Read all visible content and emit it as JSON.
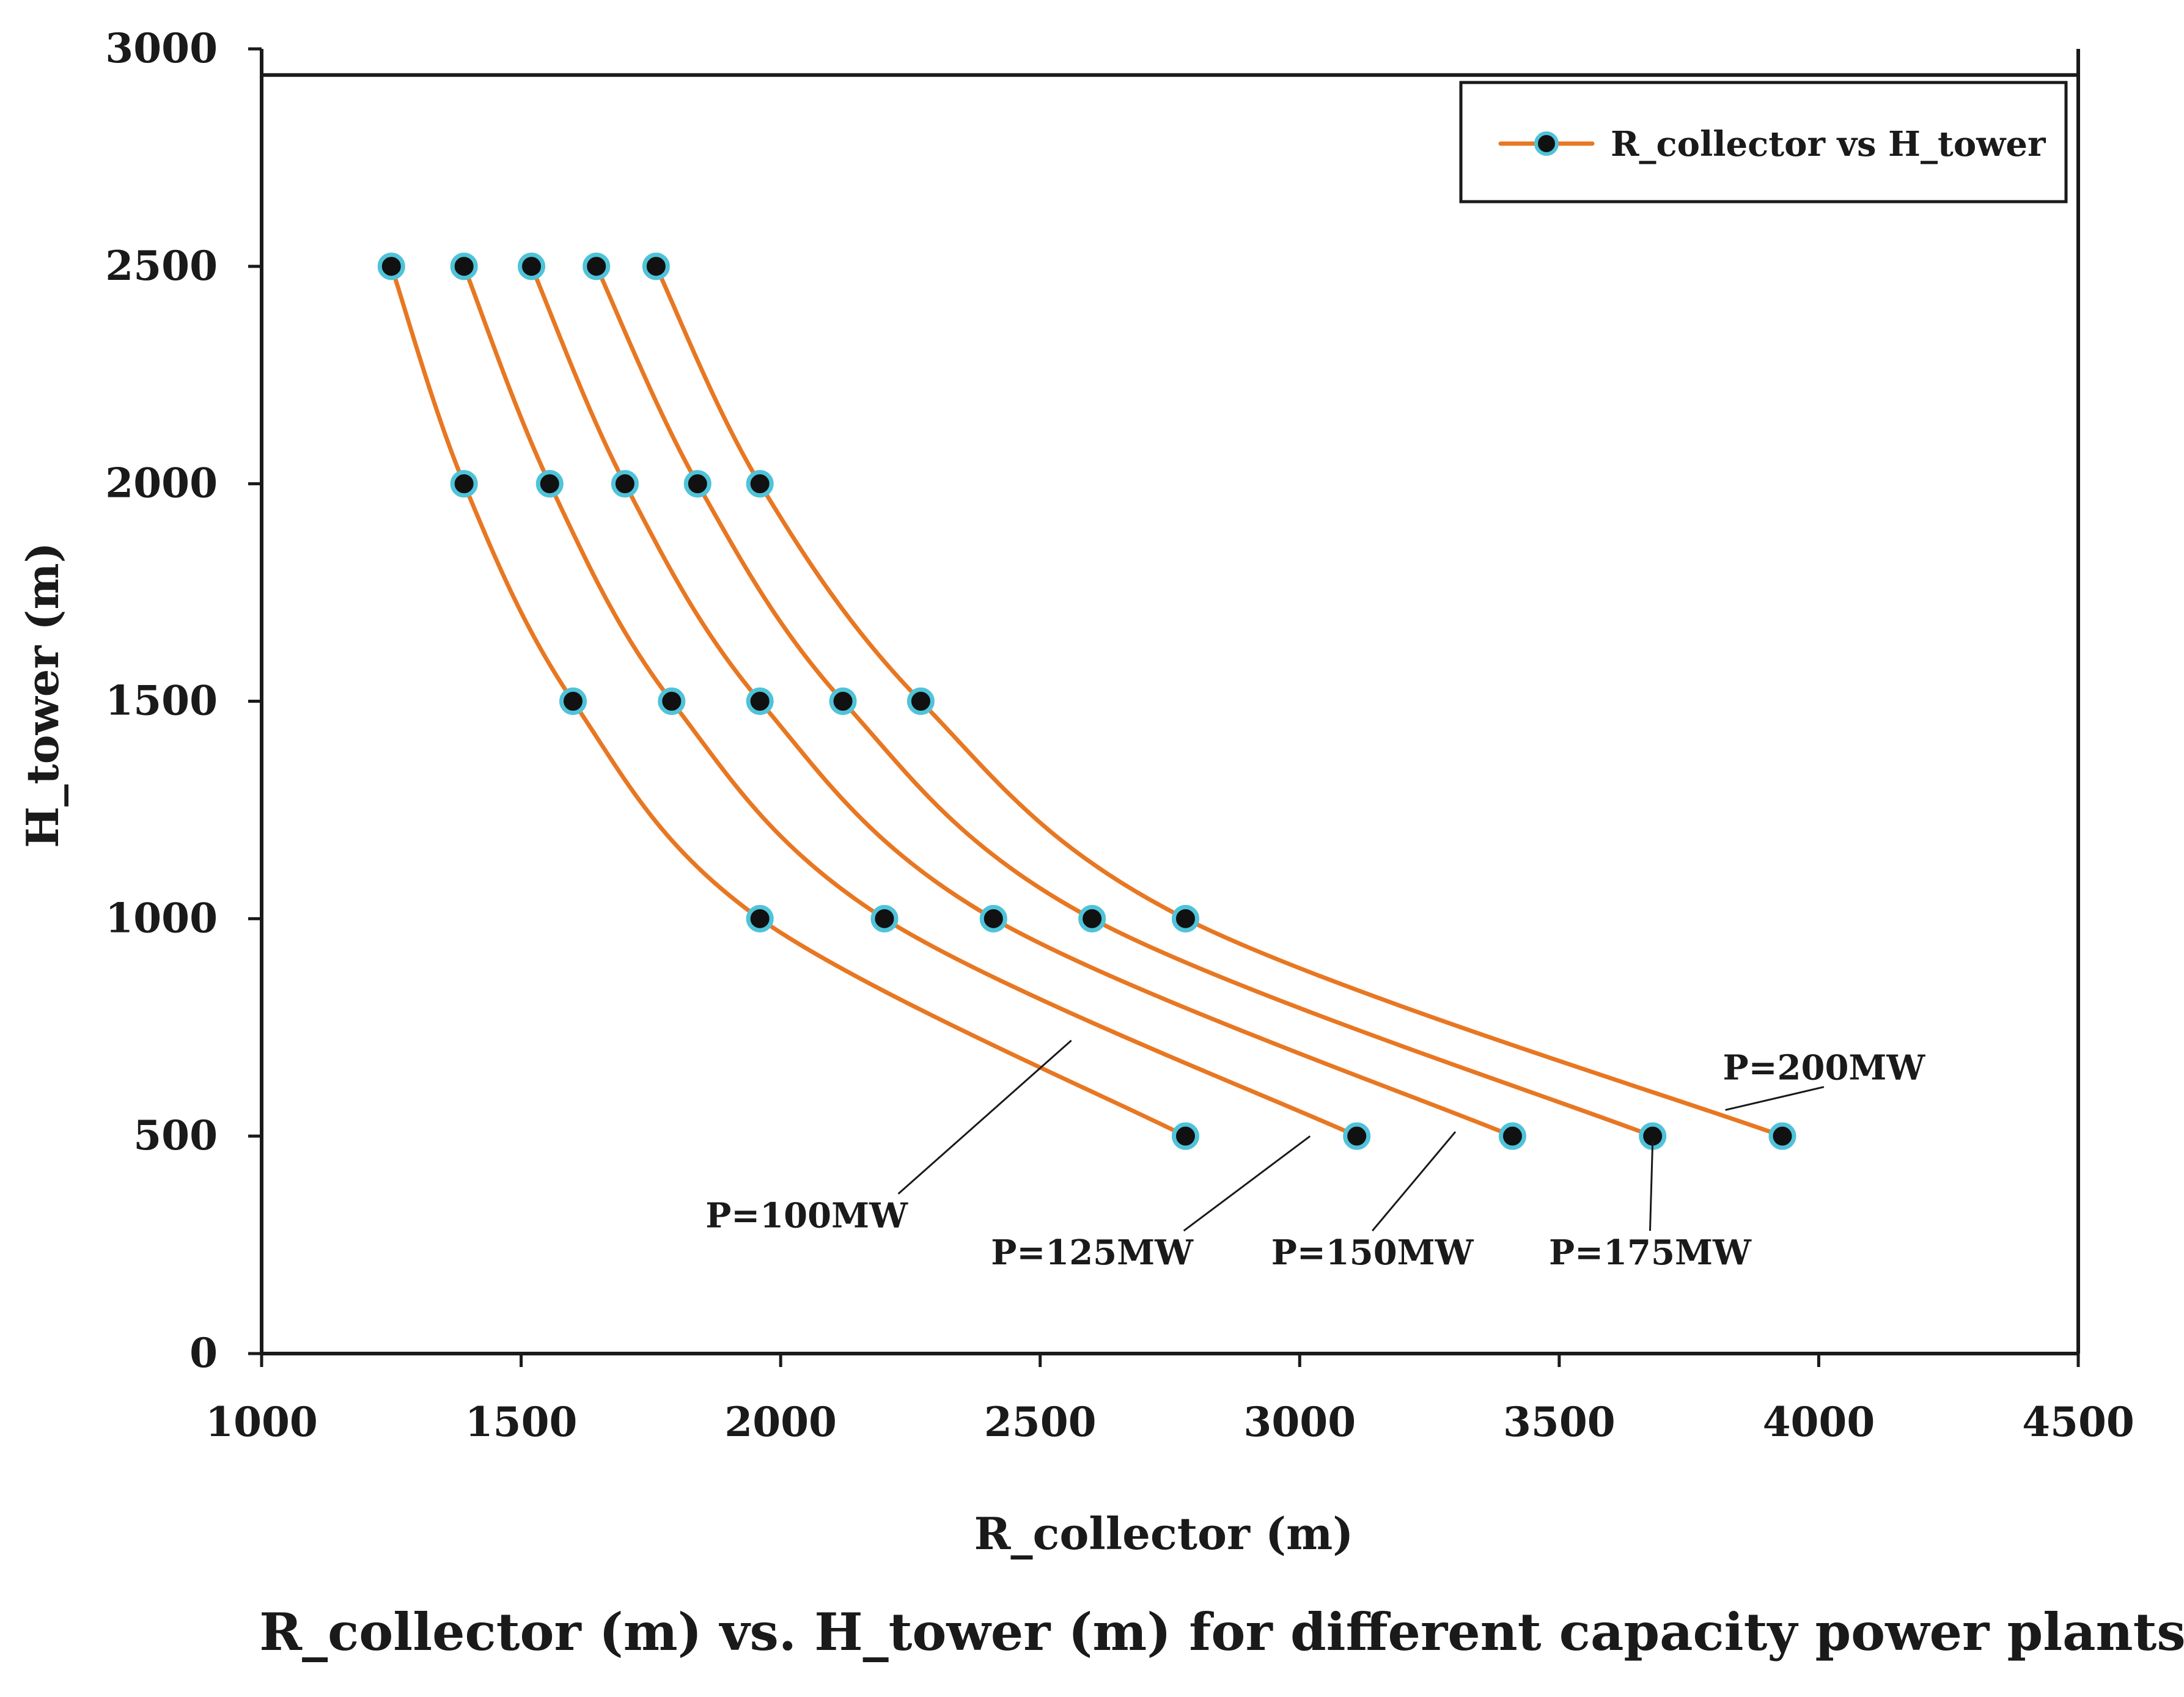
{
  "chart_data": {
    "type": "line",
    "title": "",
    "xlabel": "R_collector  (m)",
    "ylabel": "H_tower (m)",
    "xlim": [
      1000,
      4500
    ],
    "ylim": [
      0,
      3000
    ],
    "xticks": [
      1000,
      1500,
      2000,
      2500,
      3000,
      3500,
      4000,
      4500
    ],
    "yticks": [
      0,
      500,
      1000,
      1500,
      2000,
      2500,
      3000
    ],
    "grid": false,
    "legend": {
      "position": "top-right",
      "entries": [
        "R_collector vs H_tower"
      ]
    },
    "colors": {
      "line": "#E87722",
      "marker_fill": "#111111",
      "marker_ring": "#4FC3D9",
      "axis": "#1a1a1a"
    },
    "series": [
      {
        "name": "P=100MW",
        "x": [
          2780,
          1960,
          1600,
          1390,
          1250
        ],
        "y": [
          500,
          1000,
          1500,
          2000,
          2500
        ]
      },
      {
        "name": "P=125MW",
        "x": [
          3110,
          2200,
          1790,
          1555,
          1390
        ],
        "y": [
          500,
          1000,
          1500,
          2000,
          2500
        ]
      },
      {
        "name": "P=150MW",
        "x": [
          3410,
          2410,
          1960,
          1700,
          1520
        ],
        "y": [
          500,
          1000,
          1500,
          2000,
          2500
        ]
      },
      {
        "name": "P=175MW",
        "x": [
          3680,
          2600,
          2120,
          1840,
          1645
        ],
        "y": [
          500,
          1000,
          1500,
          2000,
          2500
        ]
      },
      {
        "name": "P=200MW",
        "x": [
          3930,
          2780,
          2270,
          1960,
          1760
        ],
        "y": [
          500,
          1000,
          1500,
          2000,
          2500
        ]
      }
    ],
    "annotations": [
      {
        "text": "P=100MW",
        "label_at": [
          2050,
          290
        ],
        "points_to": [
          2560,
          720
        ]
      },
      {
        "text": "P=125MW",
        "label_at": [
          2600,
          205
        ],
        "points_to": [
          3020,
          500
        ]
      },
      {
        "text": "P=150MW",
        "label_at": [
          3140,
          205
        ],
        "points_to": [
          3300,
          510
        ]
      },
      {
        "text": "P=175MW",
        "label_at": [
          3675,
          205
        ],
        "points_to": [
          3680,
          490
        ]
      },
      {
        "text": "P=200MW",
        "label_at": [
          4010,
          630
        ],
        "points_to": [
          3820,
          560
        ]
      }
    ],
    "caption": "R_collector (m) vs. H_tower (m) for different capacity power plants"
  }
}
